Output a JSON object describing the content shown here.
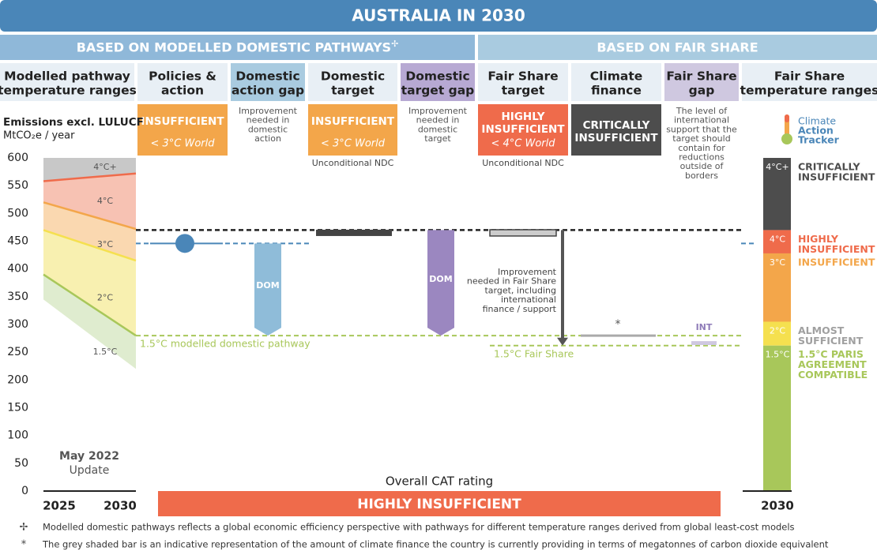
{
  "header": {
    "title": "AUSTRALIA IN 2030"
  },
  "sections": [
    {
      "label": "BASED ON MODELLED DOMESTIC PATHWAYS",
      "mark": "✢",
      "color": "#8fb8d9"
    },
    {
      "label": "BASED ON FAIR SHARE",
      "color": "#a9cbe0"
    }
  ],
  "columns": [
    {
      "header": [
        "Modelled pathway",
        "temperature ranges"
      ],
      "color": "#e8eff5"
    },
    {
      "header": [
        "Policies &",
        "action"
      ],
      "color": "#e8eff5",
      "rating": {
        "lines": [
          "INSUFFICIENT"
        ],
        "sub": "< 3°C World",
        "color": "#f3a64a"
      }
    },
    {
      "header": [
        "Domestic",
        "action gap"
      ],
      "color": "#a9cbe0",
      "note": [
        "Improvement",
        "needed in",
        "domestic",
        "action"
      ]
    },
    {
      "header": [
        "Domestic",
        "target"
      ],
      "color": "#e8eff5",
      "rating": {
        "lines": [
          "INSUFFICIENT"
        ],
        "sub": "< 3°C World",
        "color": "#f3a64a"
      },
      "sub_note": "Unconditional NDC"
    },
    {
      "header": [
        "Domestic",
        "target gap"
      ],
      "color": "#b7a9d3",
      "note": [
        "Improvement",
        "needed in",
        "domestic",
        "target"
      ]
    },
    {
      "header": [
        "Fair Share",
        "target"
      ],
      "color": "#e8eff5",
      "rating": {
        "lines": [
          "HIGHLY",
          "INSUFFICIENT"
        ],
        "sub": "< 4°C World",
        "color": "#ef6b4b"
      },
      "sub_note": "Unconditional NDC"
    },
    {
      "header": [
        "Climate",
        "finance"
      ],
      "color": "#e8eff5",
      "rating": {
        "lines": [
          "CRITICALLY",
          "INSUFFICIENT"
        ],
        "color": "#4d4d4d"
      }
    },
    {
      "header": [
        "Fair Share",
        "gap"
      ],
      "color": "#cfc8e0",
      "note": [
        "The level of",
        "international",
        "support that the",
        "target should",
        "contain for",
        "reductions",
        "outside of",
        "borders"
      ]
    },
    {
      "header": [
        "Fair Share",
        "temperature ranges"
      ],
      "color": "#e8eff5"
    }
  ],
  "logo": [
    "Climate",
    "Action",
    "Tracker"
  ],
  "chart_data": {
    "type": "cat-rating",
    "y_label": [
      "Emissions excl. LULUCF",
      "MtCO₂e / year"
    ],
    "ylim": [
      0,
      600
    ],
    "yticks": [
      0,
      50,
      100,
      150,
      200,
      250,
      300,
      350,
      400,
      450,
      500,
      550,
      600
    ],
    "x": [
      "2025",
      "2030"
    ],
    "x_right": "2030",
    "update": [
      "May 2022",
      "Update"
    ],
    "boundaries": [
      {
        "name": "4°C+",
        "fill": "#c8c8c8",
        "line": "#ef6b4b",
        "values": [
          558,
          572
        ]
      },
      {
        "name": "4°C",
        "fill": "#f7c2b3",
        "line": "#f3a64a",
        "values": [
          520,
          472
        ]
      },
      {
        "name": "3°C",
        "fill": "#fad8b0",
        "line": "#f5e04f",
        "values": [
          470,
          415
        ]
      },
      {
        "name": "2°C",
        "fill": "#f8f0b0",
        "line": "#a8c75a",
        "values": [
          390,
          280
        ]
      },
      {
        "name": "1.5°C",
        "fill": "#dfeccf",
        "values": [
          345,
          220
        ]
      }
    ],
    "reference_lines": [
      {
        "value": 470,
        "color": "#222222"
      },
      {
        "value": 446,
        "color": "#4a86b8"
      },
      {
        "value": 280,
        "color": "#a8c75a",
        "label": "1.5°C modelled domestic pathway"
      },
      {
        "value": 262,
        "color": "#a8c75a",
        "label": "1.5°C Fair Share"
      }
    ],
    "policies": {
      "value": 446,
      "color": "#4a86b8"
    },
    "gaps": [
      {
        "label": "DOM",
        "from": 446,
        "to": 280,
        "color": "#8fbcd9"
      },
      {
        "label": "DOM",
        "from": 470,
        "to": 280,
        "color": "#9b87c0"
      }
    ],
    "domestic_target": {
      "value": 465,
      "color": "#444444"
    },
    "fair_share_target": {
      "value": 465,
      "color": "#cccccc"
    },
    "improvement": {
      "from": 470,
      "to": 262,
      "label": [
        "Improvement",
        "needed in Fair Share",
        "target, including",
        "international",
        "finance /  support"
      ]
    },
    "climate_finance": {
      "value": 280,
      "note": "*"
    },
    "international": {
      "label": "INT",
      "values": [
        270,
        263
      ],
      "color": "#cfc8e0"
    },
    "scale": [
      {
        "name": "4°C+",
        "lower": 470,
        "color": "#4d4d4d",
        "rating": [
          "CRITICALLY",
          "INSUFFICIENT"
        ]
      },
      {
        "name": "4°C",
        "lower": 428,
        "color": "#ef6b4b",
        "rating": [
          "HIGHLY",
          "INSUFFICIENT"
        ]
      },
      {
        "name": "3°C",
        "lower": 305,
        "color": "#f3a64a",
        "rating": [
          "INSUFFICIENT"
        ]
      },
      {
        "name": "2°C",
        "lower": 262,
        "color": "#f5e04f",
        "text_color": "#a0a0a0",
        "rating": [
          "ALMOST",
          "SUFFICIENT"
        ]
      },
      {
        "name": "1.5°C",
        "lower": 0,
        "color": "#a8c75a",
        "rating": [
          "1.5°C PARIS",
          "AGREEMENT",
          "COMPATIBLE"
        ]
      }
    ]
  },
  "overall": {
    "label": "Overall CAT rating",
    "rating": "HIGHLY INSUFFICIENT",
    "color": "#ef6b4b"
  },
  "footnotes": [
    {
      "mark": "✢",
      "text": "Modelled domestic pathways reflects a global economic efficiency perspective with pathways for different temperature ranges derived from global least-cost models"
    },
    {
      "mark": "*",
      "text": "The grey shaded bar is an indicative representation of the amount of climate finance the country is currently providing in terms of megatonnes of carbon dioxide equivalent"
    }
  ]
}
